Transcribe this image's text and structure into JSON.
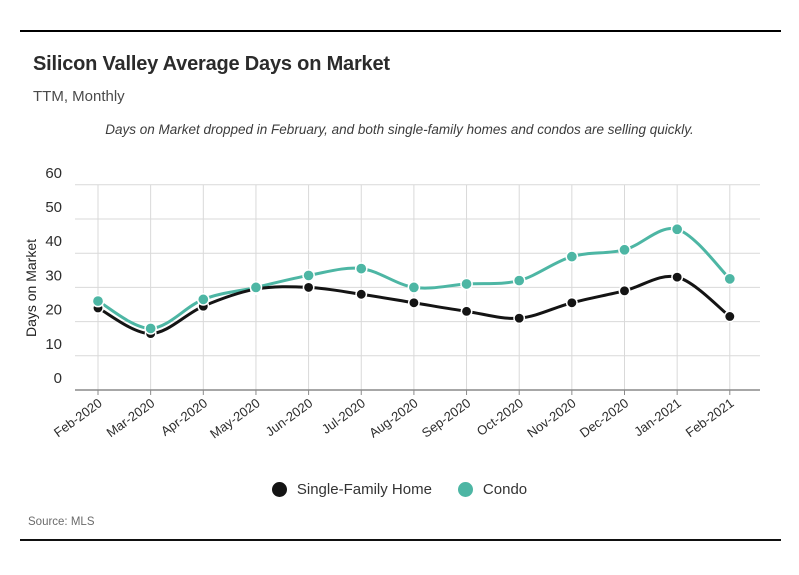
{
  "header": {
    "title": "Silicon Valley Average Days on Market",
    "subtitle": "TTM, Monthly"
  },
  "annotation": {
    "text": "Days on Market dropped in February, and both single-family homes and condos are selling quickly."
  },
  "footer": {
    "source_label": "Source:",
    "source_value": "MLS"
  },
  "colors": {
    "single_family": "#141414",
    "condo": "#4DB6A4",
    "gridline": "#d9d9d9",
    "axis": "#8a8a8a",
    "tick_text": "#2d2d2d",
    "rule": "#000000"
  },
  "chart_data": {
    "type": "line",
    "title": "Silicon Valley Average Days on Market",
    "subtitle": "TTM, Monthly",
    "xlabel": "",
    "ylabel": "Days on Market",
    "ylim": [
      0,
      60
    ],
    "yticks": [
      0,
      10,
      20,
      30,
      40,
      50,
      60
    ],
    "grid": true,
    "legend_position": "bottom",
    "categories": [
      "Feb-2020",
      "Mar-2020",
      "Apr-2020",
      "May-2020",
      "Jun-2020",
      "Jul-2020",
      "Aug-2020",
      "Sep-2020",
      "Oct-2020",
      "Nov-2020",
      "Dec-2020",
      "Jan-2021",
      "Feb-2021"
    ],
    "series": [
      {
        "name": "Single-Family Home",
        "color": "#141414",
        "values": [
          24,
          16.5,
          24.5,
          29.5,
          30,
          28,
          25.5,
          23,
          21,
          25.5,
          29,
          33,
          21.5
        ]
      },
      {
        "name": "Condo",
        "color": "#4DB6A4",
        "values": [
          26,
          18,
          26.5,
          30,
          33.5,
          35.5,
          30,
          31,
          32,
          39,
          41,
          47,
          32.5
        ]
      }
    ]
  }
}
